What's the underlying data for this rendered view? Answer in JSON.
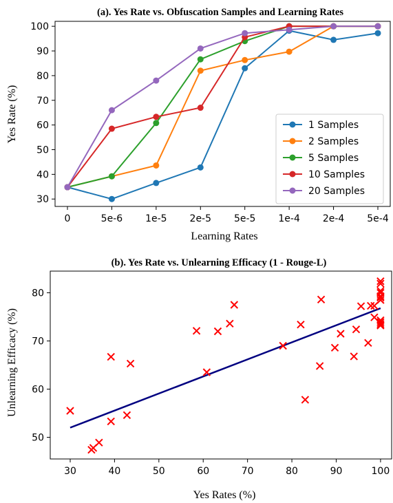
{
  "chart_data": [
    {
      "type": "line",
      "title": "(a). Yes Rate vs. Obfuscation Samples and Learning Rates",
      "xlabel": "Learning Rates",
      "ylabel": "Yes Rate (%)",
      "categories": [
        "0",
        "5e-6",
        "1e-5",
        "2e-5",
        "5e-5",
        "1e-4",
        "2e-4",
        "5e-4"
      ],
      "ylim": [
        27,
        102
      ],
      "yticks": [
        30,
        40,
        50,
        60,
        70,
        80,
        90,
        100
      ],
      "grid": false,
      "legend": "center-right",
      "series": [
        {
          "name": "1 Samples",
          "color": "#1f77b4",
          "values": [
            34.8,
            30.0,
            36.5,
            42.8,
            83.0,
            98.2,
            94.5,
            97.2
          ]
        },
        {
          "name": "2 Samples",
          "color": "#ff7f0e",
          "values": [
            34.8,
            39.2,
            43.6,
            82.0,
            86.3,
            89.7,
            100.0,
            100.0
          ]
        },
        {
          "name": "5 Samples",
          "color": "#2ca02c",
          "values": [
            34.8,
            39.2,
            60.8,
            86.6,
            94.0,
            100.0,
            100.0,
            100.0
          ]
        },
        {
          "name": "10 Samples",
          "color": "#d62728",
          "values": [
            34.8,
            58.5,
            63.3,
            67.0,
            95.6,
            100.0,
            100.0,
            100.0
          ]
        },
        {
          "name": "20 Samples",
          "color": "#9467bd",
          "values": [
            34.8,
            66.0,
            78.0,
            91.0,
            97.2,
            98.6,
            100.0,
            100.0
          ]
        }
      ]
    },
    {
      "type": "scatter",
      "title": "(b). Yes Rate vs. Unlearning Efficacy (1 - Rouge-L)",
      "xlabel": "Yes Rates (%)",
      "ylabel": "Unlearning Efficacy (%)",
      "xlim": [
        25.5,
        102.5
      ],
      "ylim": [
        45.5,
        84.5
      ],
      "xticks": [
        30,
        40,
        50,
        60,
        70,
        80,
        90,
        100
      ],
      "yticks": [
        50,
        60,
        70,
        80
      ],
      "grid": false,
      "points_color": "#ff0000",
      "line_color": "#000080",
      "fit_line": [
        [
          30,
          52.0
        ],
        [
          100,
          76.8
        ]
      ],
      "points": [
        [
          30.0,
          55.5
        ],
        [
          34.8,
          47.4
        ],
        [
          35.2,
          47.8
        ],
        [
          36.5,
          48.9
        ],
        [
          39.2,
          66.7
        ],
        [
          39.2,
          53.3
        ],
        [
          42.8,
          54.6
        ],
        [
          43.6,
          65.3
        ],
        [
          58.5,
          72.1
        ],
        [
          60.8,
          63.5
        ],
        [
          63.3,
          72.0
        ],
        [
          66.0,
          73.6
        ],
        [
          67.0,
          77.5
        ],
        [
          78.0,
          69.0
        ],
        [
          82.0,
          73.4
        ],
        [
          83.0,
          57.8
        ],
        [
          86.3,
          64.8
        ],
        [
          86.6,
          78.6
        ],
        [
          89.7,
          68.6
        ],
        [
          91.0,
          71.5
        ],
        [
          94.0,
          66.8
        ],
        [
          94.5,
          72.4
        ],
        [
          95.6,
          77.2
        ],
        [
          97.2,
          69.6
        ],
        [
          97.8,
          77.3
        ],
        [
          98.6,
          77.3
        ],
        [
          98.6,
          74.9
        ],
        [
          100.0,
          82.4
        ],
        [
          100.0,
          81.9
        ],
        [
          100.0,
          80.4
        ],
        [
          100.0,
          80.0
        ],
        [
          100.0,
          79.3
        ],
        [
          100.0,
          79.0
        ],
        [
          100.0,
          78.5
        ],
        [
          100.0,
          74.3
        ],
        [
          100.0,
          73.9
        ],
        [
          100.0,
          73.5
        ],
        [
          100.0,
          73.2
        ]
      ]
    }
  ]
}
